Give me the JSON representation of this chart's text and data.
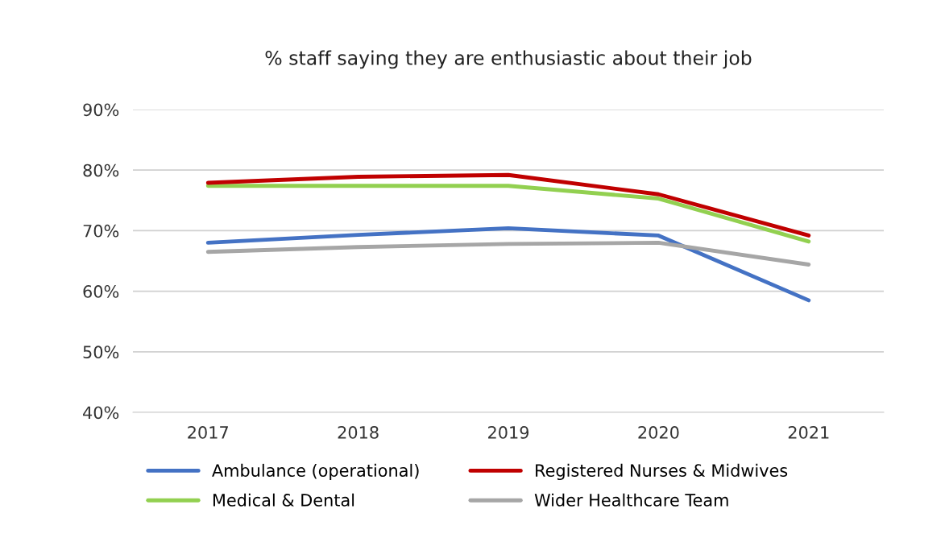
{
  "chart_data": {
    "type": "line",
    "title": "% staff saying they are enthusiastic about their job",
    "categories": [
      "2017",
      "2018",
      "2019",
      "2020",
      "2021"
    ],
    "series": [
      {
        "name": "Ambulance (operational)",
        "color": "#4472c4",
        "values": [
          68.0,
          69.3,
          70.4,
          69.2,
          58.5
        ]
      },
      {
        "name": "Medical & Dental",
        "color": "#92d050",
        "values": [
          77.4,
          77.4,
          77.4,
          75.3,
          68.2
        ]
      },
      {
        "name": "Registered Nurses & Midwives",
        "color": "#c00000",
        "values": [
          77.9,
          78.9,
          79.2,
          76.0,
          69.2
        ]
      },
      {
        "name": "Wider Healthcare Team",
        "color": "#a6a6a6",
        "values": [
          66.5,
          67.3,
          67.8,
          68.0,
          64.4
        ]
      }
    ],
    "ylim": [
      40,
      90
    ],
    "yticks": [
      {
        "value": 40,
        "label": "40%"
      },
      {
        "value": 50,
        "label": "50%"
      },
      {
        "value": 60,
        "label": "60%"
      },
      {
        "value": 70,
        "label": "70%"
      },
      {
        "value": 80,
        "label": "80%"
      },
      {
        "value": 90,
        "label": "90%"
      }
    ],
    "grid": "y",
    "legend": "bottom",
    "marker": "none",
    "line_style": "solid"
  }
}
